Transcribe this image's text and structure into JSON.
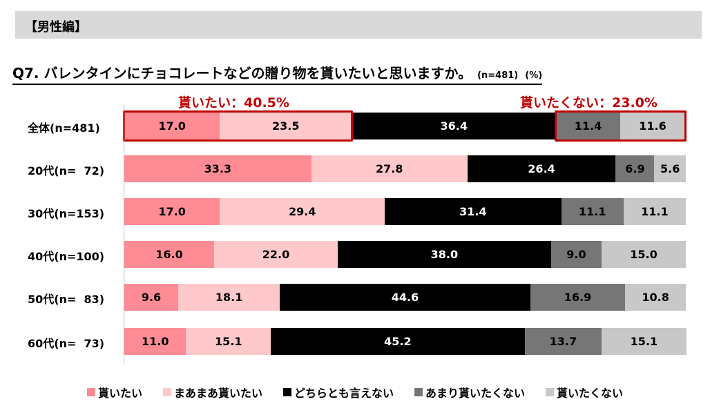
{
  "header": {
    "label": "【男性編】"
  },
  "chart_data": {
    "type": "bar",
    "orientation": "horizontal",
    "stacked": true,
    "unit": "%",
    "title": "Q7. バレンタインにチョコレートなどの贈り物を貰いたいと思いますか。",
    "sample_note": "(n=481)",
    "unit_note": "(%)",
    "categories": [
      "全体(n=481)",
      "20代(n=  72)",
      "30代(n=153)",
      "40代(n=100)",
      "50代(n=  83)",
      "60代(n=  73)"
    ],
    "series": [
      {
        "name": "貰いたい",
        "color": "#ff8c94",
        "text_color": "#000000",
        "values": [
          17.0,
          33.3,
          17.0,
          16.0,
          9.6,
          11.0
        ]
      },
      {
        "name": "まあまあ貰いたい",
        "color": "#ffc9cc",
        "text_color": "#000000",
        "values": [
          23.5,
          27.8,
          29.4,
          22.0,
          18.1,
          15.1
        ]
      },
      {
        "name": "どちらとも言えない",
        "color": "#000000",
        "text_color": "#ffffff",
        "values": [
          36.4,
          26.4,
          31.4,
          38.0,
          44.6,
          45.2
        ]
      },
      {
        "name": "あまり貰いたくない",
        "color": "#767676",
        "text_color": "#000000",
        "values": [
          11.4,
          6.9,
          11.1,
          9.0,
          16.9,
          13.7
        ]
      },
      {
        "name": "貰いたくない",
        "color": "#c8c8c8",
        "text_color": "#000000",
        "values": [
          11.6,
          5.6,
          11.1,
          15.0,
          10.8,
          15.1
        ]
      }
    ],
    "annotations": {
      "want": "貰いたい：40.5%",
      "not_want": "貰いたくない：23.0%"
    },
    "xlim": [
      0,
      100
    ]
  }
}
